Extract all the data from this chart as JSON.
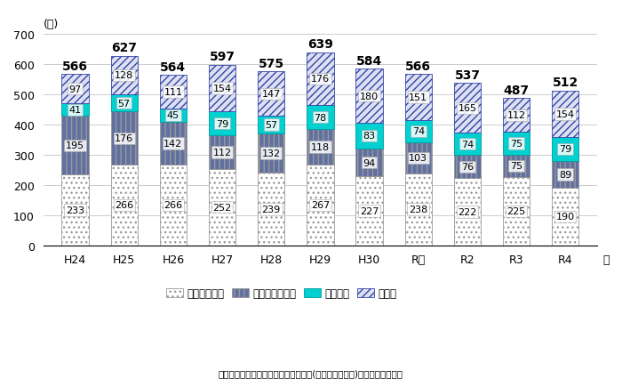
{
  "categories": [
    "H24",
    "H25",
    "H26",
    "H27",
    "H28",
    "H29",
    "H30",
    "R元",
    "R2",
    "R3",
    "R4"
  ],
  "totals": [
    566,
    627,
    564,
    597,
    575,
    639,
    584,
    566,
    537,
    487,
    512
  ],
  "diabetes": [
    233,
    266,
    266,
    252,
    239,
    267,
    227,
    238,
    222,
    225,
    190
  ],
  "chronic_glomerulo": [
    195,
    176,
    142,
    112,
    132,
    118,
    94,
    103,
    76,
    75,
    89
  ],
  "nephrosclerosis": [
    41,
    57,
    45,
    79,
    57,
    78,
    83,
    74,
    74,
    75,
    79
  ],
  "other": [
    97,
    128,
    111,
    154,
    147,
    176,
    180,
    151,
    165,
    112,
    154
  ],
  "xlabel": "年",
  "title_yunit": "(人)",
  "ylim": [
    0,
    700
  ],
  "yticks": [
    0,
    100,
    200,
    300,
    400,
    500,
    600,
    700
  ],
  "color_diabetes": "#ffffff",
  "color_chronic_glomerulo": "#6070a0",
  "color_nephrosclerosis": "#00d0d0",
  "color_other_face": "#dde0f0",
  "legend_labels": [
    "糖尿病性賢症",
    "潁性糸球体賢炎",
    "腎硬化症",
    "その他"
  ],
  "source_text": "【出典：わが国の潁性透析療法の現状(日本透析医学会)から引用，改変】",
  "bg_color": "#ffffff",
  "grid_color": "#cccccc",
  "bar_edge_color": "#999999",
  "bar_width": 0.55,
  "fontsize_ticks": 9,
  "fontsize_total": 10,
  "fontsize_bar_label": 8,
  "fontsize_legend": 8.5,
  "fontsize_source": 7.5,
  "fontsize_yunit": 9
}
